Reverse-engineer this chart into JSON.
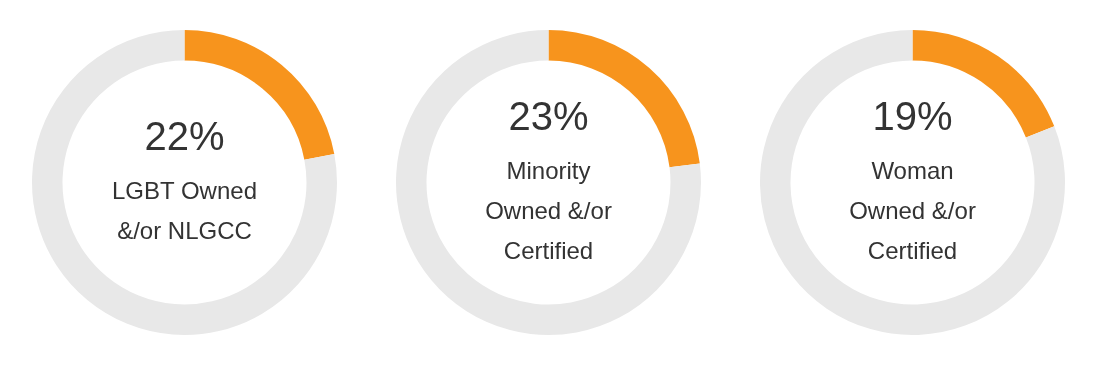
{
  "chart_data": [
    {
      "type": "donut",
      "categories": [
        "LGBT Owned &/or NLGCC",
        null
      ],
      "values": [
        22,
        78
      ],
      "colors": [
        "#f7941d",
        "#e8e8e8"
      ],
      "value_labels": [
        "22%",
        null
      ],
      "legend": false
    },
    {
      "type": "donut",
      "categories": [
        "Minority Owned &/or Certified",
        null
      ],
      "values": [
        23,
        77
      ],
      "colors": [
        "#f7941d",
        "#e8e8e8"
      ],
      "value_labels": [
        "23%",
        null
      ],
      "legend": false
    },
    {
      "type": "donut",
      "categories": [
        "Woman Owned &/or Certified",
        null
      ],
      "values": [
        19,
        81
      ],
      "colors": [
        "#f7941d",
        "#e8e8e8"
      ],
      "value_labels": [
        "19%",
        null
      ],
      "legend": false
    }
  ]
}
